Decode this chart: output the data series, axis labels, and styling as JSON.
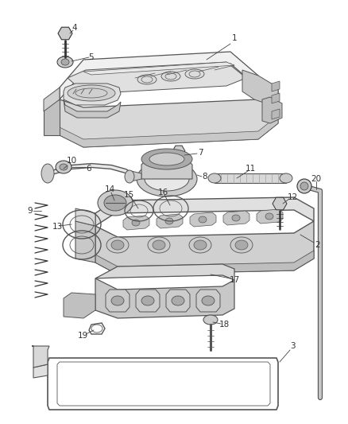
{
  "bg_color": "#ffffff",
  "lc": "#555555",
  "lc2": "#333333",
  "fc_light": "#e8e8e8",
  "fc_mid": "#cccccc",
  "fc_dark": "#aaaaaa",
  "label_color": "#333333",
  "font_size": 7.5,
  "fig_w": 4.38,
  "fig_h": 5.33,
  "dpi": 100
}
